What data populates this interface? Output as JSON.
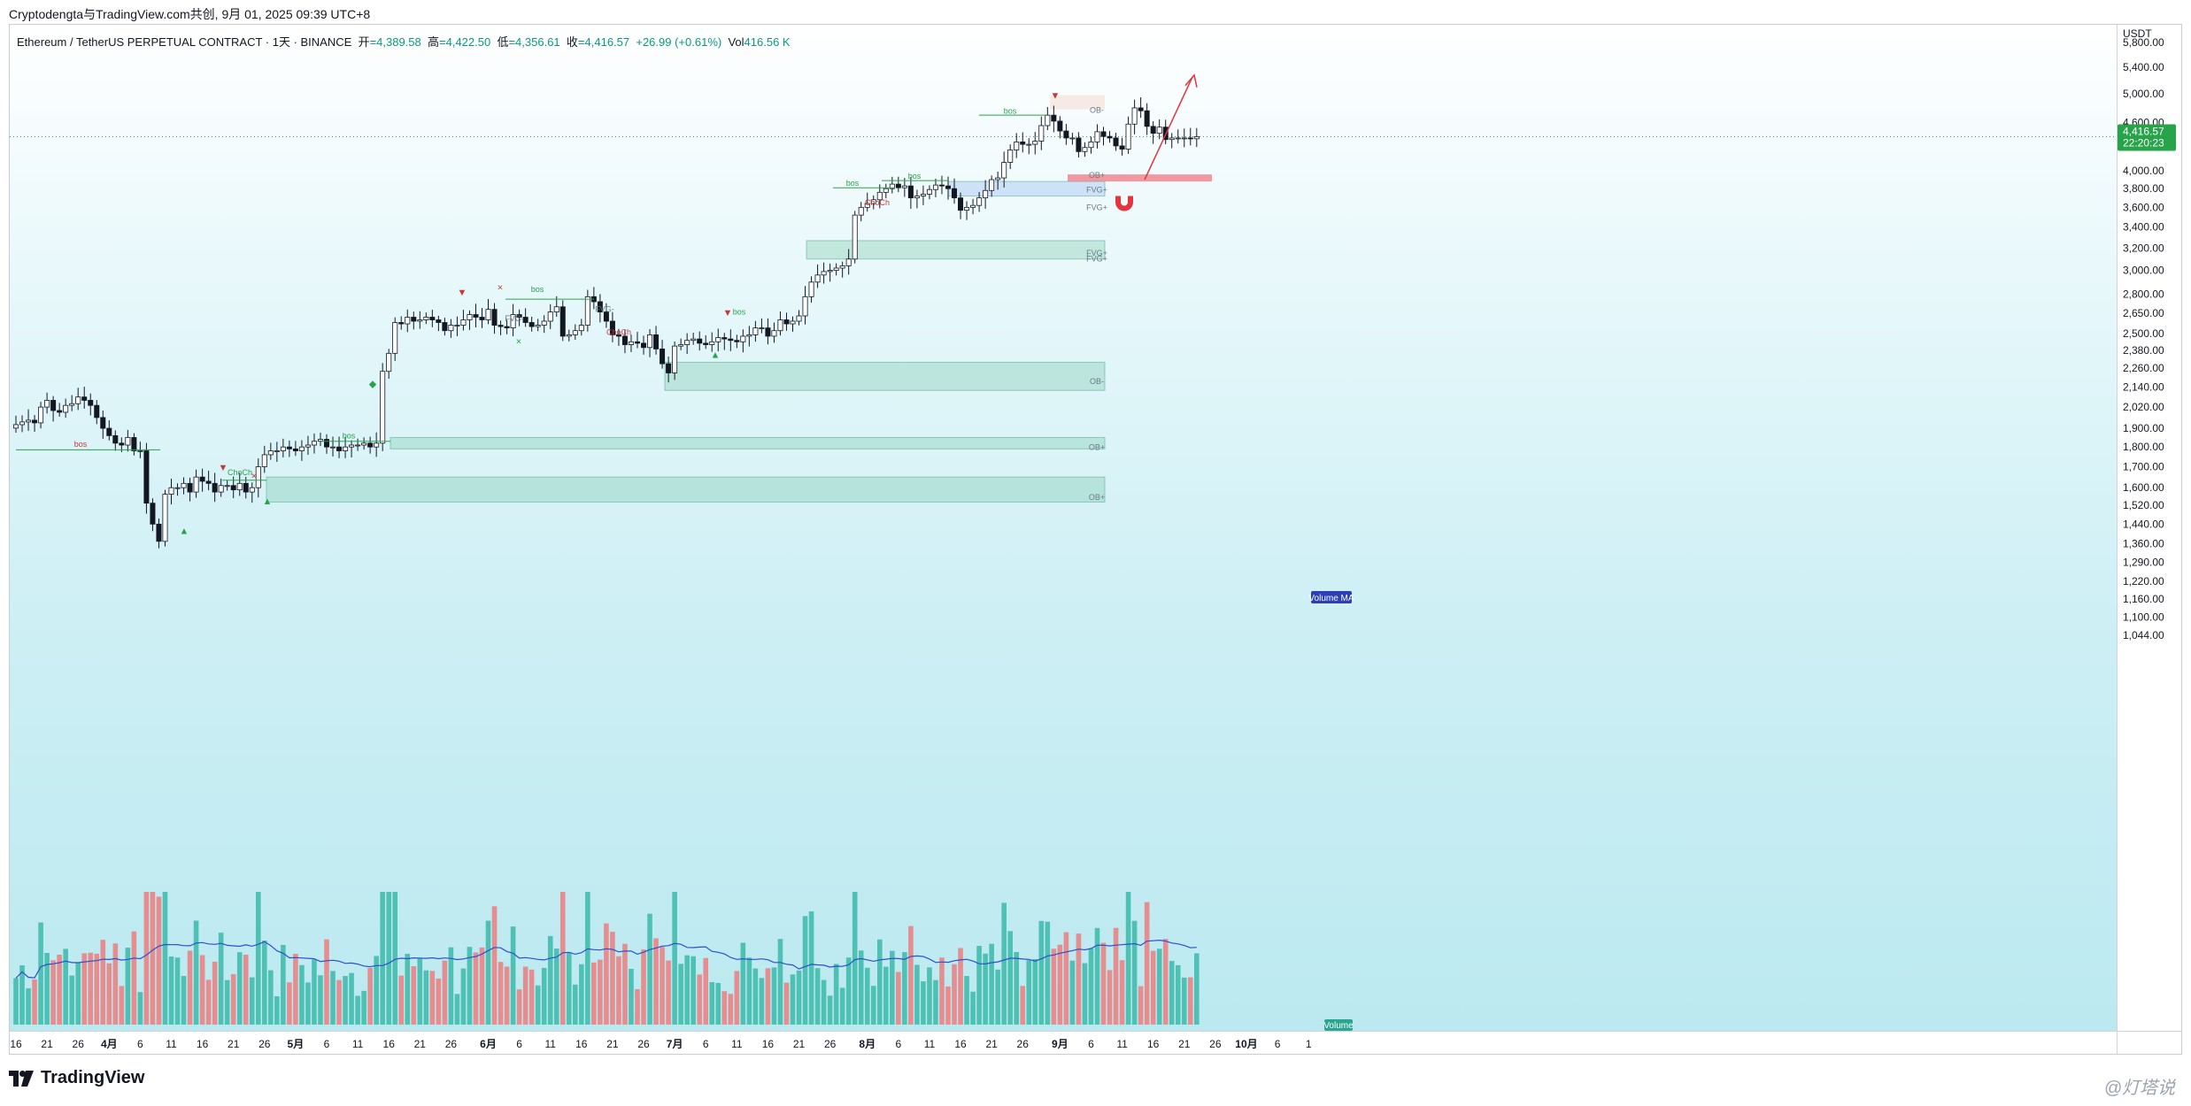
{
  "credit": "Cryptodengta与TradingView.com共创, 9月 01, 2025 09:39 UTC+8",
  "legend": {
    "symbol": "Ethereum / TetherUS PERPETUAL CONTRACT · 1天 · BINANCE",
    "open_label": "开",
    "open": "=4,389.58",
    "high_label": "高",
    "high": "=4,422.50",
    "low_label": "低",
    "low": "=4,356.61",
    "close_label": "收",
    "close": "=4,416.57",
    "change": "+26.99 (+0.61%)",
    "vol_label": "Vol",
    "vol": "416.56 K"
  },
  "price_axis": {
    "currency": "USDT",
    "current_price": "4,416.57",
    "countdown": "22:20:23"
  },
  "brand": "TradingView",
  "watermark": "@灯塔说",
  "colors": {
    "up": "#27a34a",
    "down": "#c4393a",
    "volume_up": "#4fc1b4",
    "volume_down": "#e58d8f",
    "ma": "#2d4fcc",
    "accent_red": "#f08a93"
  },
  "chart_data": {
    "type": "candlestick",
    "title": "",
    "interval": "1天",
    "y_scale": "log",
    "ylim": [
      1000,
      6100
    ],
    "y_ticks": [
      5800,
      5400,
      5000,
      4600,
      4000,
      3800,
      3600,
      3400,
      3200,
      3000,
      2800,
      2650,
      2500,
      2380,
      2260,
      2140,
      2020,
      1900,
      1800,
      1700,
      1600,
      1520,
      1440,
      1360,
      1290,
      1220,
      1160,
      1100,
      1044
    ],
    "y_tick_labels": [
      "5,800.00",
      "5,400.00",
      "5,000.00",
      "4,600.00",
      "4,000.00",
      "3,800.00",
      "3,600.00",
      "3,400.00",
      "3,200.00",
      "3,000.00",
      "2,800.00",
      "2,650.00",
      "2,500.00",
      "2,380.00",
      "2,260.00",
      "2,140.00",
      "2,020.00",
      "1,900.00",
      "1,800.00",
      "1,700.00",
      "1,600.00",
      "1,520.00",
      "1,440.00",
      "1,360.00",
      "1,290.00",
      "1,220.00",
      "1,160.00",
      "1,100.00",
      "1,044.00"
    ],
    "x_tick_labels": [
      "16",
      "21",
      "26",
      "4月",
      "6",
      "11",
      "16",
      "21",
      "26",
      "5月",
      "6",
      "11",
      "16",
      "21",
      "26",
      "6月",
      "6",
      "11",
      "16",
      "21",
      "26",
      "7月",
      "6",
      "11",
      "16",
      "21",
      "26",
      "8月",
      "6",
      "11",
      "16",
      "21",
      "26",
      "9月",
      "6",
      "11",
      "16",
      "21",
      "26",
      "10月",
      "6",
      "1"
    ],
    "x_tick_days": [
      0,
      5,
      10,
      15,
      20,
      25,
      30,
      35,
      40,
      45,
      50,
      55,
      60,
      65,
      70,
      76,
      81,
      86,
      91,
      96,
      101,
      106,
      111,
      116,
      121,
      126,
      131,
      137,
      142,
      147,
      152,
      157,
      162,
      168,
      173,
      178,
      183,
      188,
      193,
      198,
      203,
      208
    ],
    "x_tick_bold": [
      3,
      9,
      15,
      21,
      27,
      33,
      39
    ],
    "start_date": "2025-03-16",
    "closes": [
      1920,
      1935,
      1945,
      1930,
      2020,
      2060,
      2000,
      1990,
      2030,
      2040,
      2080,
      2060,
      2030,
      1960,
      1900,
      1860,
      1820,
      1810,
      1850,
      1780,
      1780,
      1530,
      1440,
      1370,
      1570,
      1600,
      1600,
      1620,
      1580,
      1650,
      1630,
      1620,
      1580,
      1610,
      1610,
      1590,
      1620,
      1580,
      1600,
      1700,
      1760,
      1780,
      1780,
      1800,
      1790,
      1780,
      1800,
      1810,
      1830,
      1840,
      1800,
      1800,
      1780,
      1800,
      1810,
      1810,
      1820,
      1800,
      1820,
      2240,
      2360,
      2580,
      2570,
      2620,
      2590,
      2600,
      2620,
      2600,
      2580,
      2520,
      2560,
      2560,
      2600,
      2640,
      2620,
      2600,
      2680,
      2560,
      2550,
      2540,
      2640,
      2620,
      2580,
      2550,
      2560,
      2590,
      2660,
      2700,
      2480,
      2490,
      2520,
      2560,
      2780,
      2740,
      2660,
      2590,
      2490,
      2480,
      2420,
      2440,
      2430,
      2400,
      2490,
      2390,
      2290,
      2230,
      2410,
      2420,
      2450,
      2460,
      2430,
      2420,
      2440,
      2470,
      2460,
      2450,
      2440,
      2480,
      2490,
      2540,
      2540,
      2480,
      2520,
      2600,
      2570,
      2590,
      2630,
      2780,
      2900,
      2960,
      2990,
      3000,
      3020,
      3040,
      3100,
      3520,
      3600,
      3640,
      3680,
      3760,
      3800,
      3850,
      3810,
      3830,
      3700,
      3720,
      3740,
      3790,
      3840,
      3830,
      3800,
      3700,
      3570,
      3600,
      3620,
      3700,
      3780,
      3900,
      3920,
      4100,
      4250,
      4350,
      4320,
      4320,
      4360,
      4560,
      4700,
      4620,
      4490,
      4400,
      4400,
      4230,
      4280,
      4350,
      4480,
      4420,
      4400,
      4300,
      4260,
      4580,
      4800,
      4760,
      4550,
      4460,
      4540,
      4380,
      4400,
      4400,
      4400,
      4390,
      4416.57
    ],
    "opens_note": "open = previous close",
    "volume_note": "relative daily volume bars with moving average line (Volume MA)",
    "annotations": {
      "labels": [
        "bos",
        "ChoCh",
        "bos",
        "bos",
        "ChoCh",
        "bos",
        "bos",
        "ChoCh",
        "bos",
        "bos",
        "OB-",
        "OB-",
        "OB+",
        "OB+",
        "OB+",
        "FVG+",
        "FVG+",
        "FVG+",
        "FVG+",
        "FVG-",
        "FVG-"
      ],
      "markers": [
        "×",
        "×",
        "×",
        "▼",
        "▼",
        "▼",
        "▼",
        "▲",
        "▲",
        "▲",
        "◆"
      ]
    },
    "zones": [
      {
        "type": "demand",
        "from": 1535,
        "to": 1650
      },
      {
        "type": "demand",
        "from": 1790,
        "to": 1850
      },
      {
        "type": "demand",
        "from": 2120,
        "to": 2300
      },
      {
        "type": "demand",
        "from": 3100,
        "to": 3270
      },
      {
        "type": "fvg",
        "from": 3720,
        "to": 3880
      },
      {
        "type": "supply",
        "from": 3880,
        "to": 3960
      },
      {
        "type": "supply",
        "from": 4780,
        "to": 4980
      }
    ],
    "legend_labels": [
      "Volume MA",
      "Volume"
    ]
  }
}
